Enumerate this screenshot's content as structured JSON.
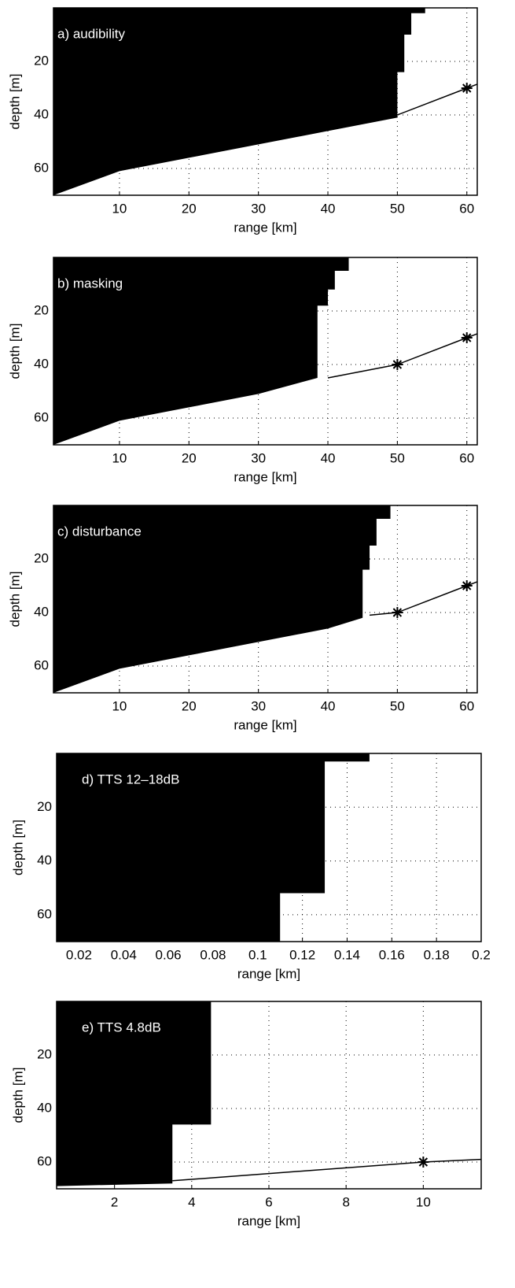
{
  "chart_data": [
    {
      "type": "area",
      "label": "a) audibility",
      "xlabel": "range [km]",
      "ylabel": "depth [m]",
      "xlim": [
        0.5,
        61.5
      ],
      "ylim": [
        0,
        70
      ],
      "xticks": [
        10,
        20,
        30,
        40,
        50,
        60
      ],
      "yticks": [
        20,
        40,
        60
      ],
      "grid": true,
      "color": "#000000",
      "region": {
        "x": [
          0.5,
          54,
          54,
          52,
          52,
          51,
          51,
          50,
          50,
          40,
          30,
          20,
          10,
          0.5
        ],
        "values": [
          0,
          0,
          2,
          2,
          10,
          10,
          24,
          24,
          41,
          46,
          51,
          56,
          61,
          70
        ]
      },
      "line": {
        "x": [
          50,
          60,
          61.5
        ],
        "values": [
          40,
          30,
          28.5
        ]
      },
      "stars": {
        "x": [
          60
        ],
        "values": [
          30
        ]
      }
    },
    {
      "type": "area",
      "label": "b) masking",
      "xlabel": "range [km]",
      "ylabel": "depth [m]",
      "xlim": [
        0.5,
        61.5
      ],
      "ylim": [
        0,
        70
      ],
      "xticks": [
        10,
        20,
        30,
        40,
        50,
        60
      ],
      "yticks": [
        20,
        40,
        60
      ],
      "grid": true,
      "color": "#000000",
      "region": {
        "x": [
          0.5,
          43,
          43,
          41,
          41,
          40,
          40,
          38.5,
          38.5,
          30,
          20,
          10,
          0.5
        ],
        "values": [
          0,
          0,
          5,
          5,
          12,
          12,
          18,
          18,
          45,
          51,
          56,
          61,
          70
        ]
      },
      "line": {
        "x": [
          40,
          50,
          60,
          61.5
        ],
        "values": [
          45,
          40,
          30,
          28.5
        ]
      },
      "stars": {
        "x": [
          50,
          60
        ],
        "values": [
          40,
          30
        ]
      }
    },
    {
      "type": "area",
      "label": "c) disturbance",
      "xlabel": "range [km]",
      "ylabel": "depth [m]",
      "xlim": [
        0.5,
        61.5
      ],
      "ylim": [
        0,
        70
      ],
      "xticks": [
        10,
        20,
        30,
        40,
        50,
        60
      ],
      "yticks": [
        20,
        40,
        60
      ],
      "grid": true,
      "color": "#000000",
      "region": {
        "x": [
          0.5,
          49,
          49,
          47,
          47,
          46,
          46,
          45,
          45,
          40,
          30,
          20,
          10,
          0.5
        ],
        "values": [
          0,
          0,
          5,
          5,
          15,
          15,
          24,
          24,
          42,
          46,
          51,
          56,
          61,
          70
        ]
      },
      "line": {
        "x": [
          46,
          50,
          60,
          61.5
        ],
        "values": [
          41,
          40,
          30,
          28.5
        ]
      },
      "stars": {
        "x": [
          50,
          60
        ],
        "values": [
          40,
          30
        ]
      }
    },
    {
      "type": "area",
      "label": "d) TTS 12–18dB",
      "xlabel": "range [km]",
      "ylabel": "depth [m]",
      "xlim": [
        0.01,
        0.2
      ],
      "ylim": [
        0,
        70
      ],
      "xticks": [
        0.02,
        0.04,
        0.06,
        0.08,
        0.1,
        0.12,
        0.14,
        0.16,
        0.18,
        0.2
      ],
      "yticks": [
        20,
        40,
        60
      ],
      "grid": true,
      "color": "#000000",
      "region": {
        "x": [
          0.01,
          0.15,
          0.15,
          0.13,
          0.13,
          0.11,
          0.11,
          0.01
        ],
        "values": [
          0,
          0,
          3,
          3,
          52,
          52,
          70,
          70
        ]
      }
    },
    {
      "type": "area",
      "label": "e) TTS 4.8dB",
      "xlabel": "range [km]",
      "ylabel": "depth [m]",
      "xlim": [
        0.5,
        11.5
      ],
      "ylim": [
        0,
        70
      ],
      "xticks": [
        2,
        4,
        6,
        8,
        10
      ],
      "yticks": [
        20,
        40,
        60
      ],
      "grid": true,
      "color": "#000000",
      "region": {
        "x": [
          0.5,
          4.5,
          4.5,
          3.5,
          3.5,
          0.5
        ],
        "values": [
          0,
          0,
          46,
          46,
          68,
          69
        ]
      },
      "line": {
        "x": [
          3.5,
          10,
          11.5
        ],
        "values": [
          67,
          60,
          59
        ]
      },
      "stars": {
        "x": [
          10
        ],
        "values": [
          60
        ]
      }
    }
  ]
}
